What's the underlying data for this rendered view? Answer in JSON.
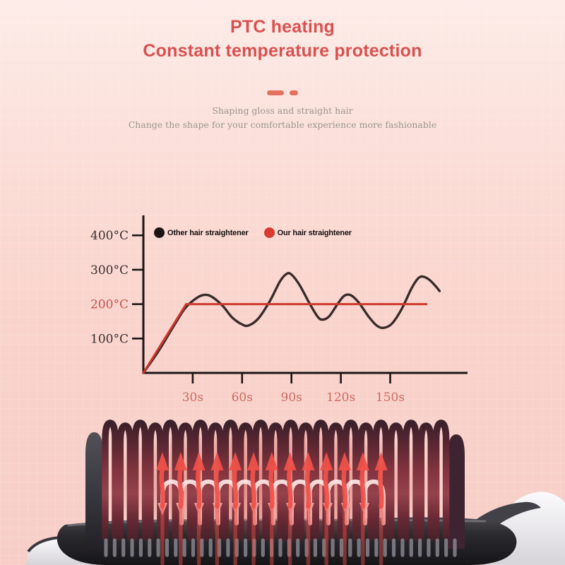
{
  "header": {
    "title_line1": "PTC heating",
    "title_line2": "Constant temperature protection",
    "title_color": "#d85150"
  },
  "intro": {
    "line1": "Shaping gloss and straight hair",
    "line2": "Change the shape for your comfortable experience more fashionable",
    "text_color": "#9b9590",
    "divider_color": "#e4705f"
  },
  "chart_data": {
    "type": "line",
    "title": "",
    "xlabel": "",
    "ylabel": "",
    "x_unit": "s",
    "y_unit": "°C",
    "xlim": [
      0,
      197
    ],
    "ylim": [
      0,
      458
    ],
    "grid": false,
    "legend_position": "top-left",
    "axis_color": "#1d1515",
    "x_tick_label_color": "#cc6a60",
    "x_ticks": [
      {
        "value": 30,
        "label": "30s"
      },
      {
        "value": 60,
        "label": "60s"
      },
      {
        "value": 90,
        "label": "90s"
      },
      {
        "value": 120,
        "label": "120s"
      },
      {
        "value": 150,
        "label": "150s"
      }
    ],
    "y_ticks": [
      {
        "value": 100,
        "label": "100°C",
        "color": "#3b2f2f"
      },
      {
        "value": 200,
        "label": "200°C",
        "color": "#c5534c"
      },
      {
        "value": 300,
        "label": "300°C",
        "color": "#3b2f2f"
      },
      {
        "value": 400,
        "label": "400°C",
        "color": "#3b2f2f"
      }
    ],
    "legend": [
      {
        "label": "Other hair straightener",
        "color": "#1d1414"
      },
      {
        "label": "Our hair straightener",
        "color": "#d83a2e"
      }
    ],
    "series": [
      {
        "name": "Other hair straightener",
        "color": "#3a2b2b",
        "smooth": true,
        "stroke_width": 3.4,
        "points": [
          [
            0,
            0
          ],
          [
            9,
            62
          ],
          [
            17,
            125
          ],
          [
            25,
            186
          ],
          [
            31,
            213
          ],
          [
            36,
            226
          ],
          [
            41,
            223
          ],
          [
            48,
            196
          ],
          [
            54,
            161
          ],
          [
            60,
            141
          ],
          [
            64,
            138
          ],
          [
            70,
            159
          ],
          [
            77,
            210
          ],
          [
            83,
            266
          ],
          [
            87,
            288
          ],
          [
            90,
            286
          ],
          [
            95,
            255
          ],
          [
            101,
            202
          ],
          [
            106,
            163
          ],
          [
            109,
            155
          ],
          [
            113,
            165
          ],
          [
            118,
            200
          ],
          [
            122,
            224
          ],
          [
            126,
            226
          ],
          [
            131,
            204
          ],
          [
            137,
            163
          ],
          [
            142,
            137
          ],
          [
            146,
            131
          ],
          [
            151,
            143
          ],
          [
            157,
            186
          ],
          [
            163,
            246
          ],
          [
            167,
            275
          ],
          [
            170,
            280
          ],
          [
            174,
            270
          ],
          [
            178,
            250
          ],
          [
            180,
            238
          ]
        ]
      },
      {
        "name": "Our hair straightener",
        "color": "#cf382d",
        "smooth": false,
        "stroke_width": 3,
        "points": [
          [
            0,
            0
          ],
          [
            26,
            200
          ],
          [
            172,
            200
          ]
        ]
      }
    ]
  },
  "product": {
    "description": "hair straightener brush head with heated bristles and rising heat arrows",
    "arrow_color": "#ee5149",
    "bristle_color": "#8e3b47",
    "base_color": "#2a282c",
    "body_color": "#f5f4f6"
  }
}
